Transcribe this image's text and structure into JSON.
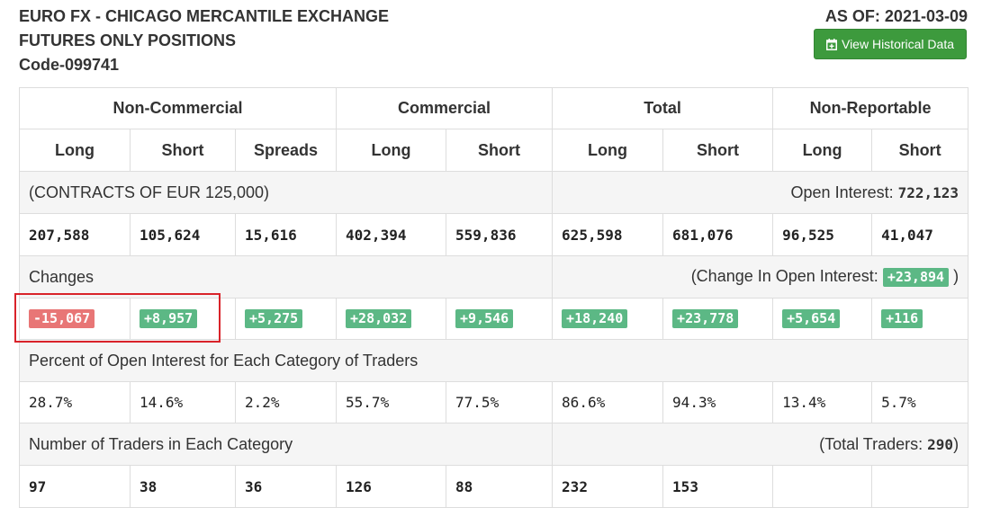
{
  "header": {
    "title_line1": "EURO FX - CHICAGO MERCANTILE EXCHANGE",
    "title_line2": "FUTURES ONLY POSITIONS",
    "title_line3": "Code-099741",
    "as_of": "AS OF: 2021-03-09",
    "historical_button": "View Historical Data",
    "historical_icon": "calendar-plus-icon"
  },
  "groups": [
    "Non-Commercial",
    "Commercial",
    "Total",
    "Non-Reportable"
  ],
  "columns": [
    "Long",
    "Short",
    "Spreads",
    "Long",
    "Short",
    "Long",
    "Short",
    "Long",
    "Short"
  ],
  "contracts": {
    "label": "(CONTRACTS OF EUR 125,000)",
    "oi_label": "Open Interest:",
    "oi_value": "722,123",
    "values": [
      "207,588",
      "105,624",
      "15,616",
      "402,394",
      "559,836",
      "625,598",
      "681,076",
      "96,525",
      "41,047"
    ]
  },
  "changes": {
    "label": "Changes",
    "oi_label": "(Change In Open Interest:",
    "oi_value": "+23,894",
    "oi_close": ")",
    "values": [
      "-15,067",
      "+8,957",
      "+5,275",
      "+28,032",
      "+9,546",
      "+18,240",
      "+23,778",
      "+5,654",
      "+116"
    ]
  },
  "percent": {
    "label": "Percent of Open Interest for Each Category of Traders",
    "values": [
      "28.7%",
      "14.6%",
      "2.2%",
      "55.7%",
      "77.5%",
      "86.6%",
      "94.3%",
      "13.4%",
      "5.7%"
    ]
  },
  "traders": {
    "label": "Number of Traders in Each Category",
    "total_label": "(Total Traders:",
    "total_value": "290",
    "total_close": ")",
    "values": [
      "97",
      "38",
      "36",
      "126",
      "88",
      "232",
      "153",
      "",
      ""
    ]
  },
  "colors": {
    "positive": "#5cb885",
    "negative": "#e87676",
    "button": "#3d9a3d",
    "highlight": "#d9232a"
  }
}
